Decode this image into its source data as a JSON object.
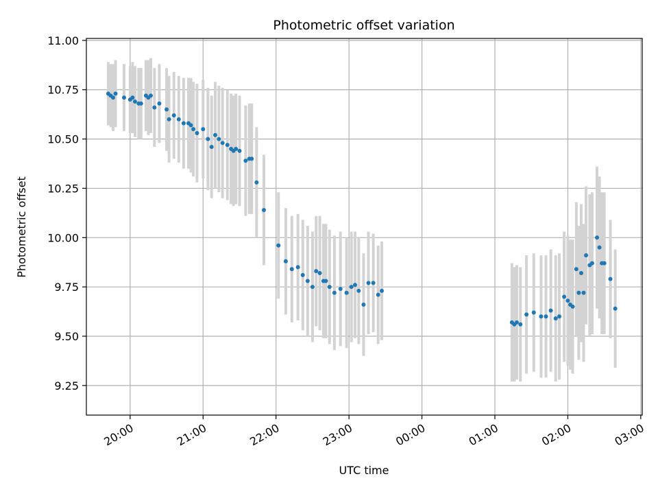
{
  "chart_data": {
    "type": "scatter",
    "title": "Photometric offset variation",
    "xlabel": "UTC time",
    "ylabel": "Photometric offset",
    "x_ticks": [
      "20:00",
      "21:00",
      "22:00",
      "23:00",
      "00:00",
      "01:00",
      "02:00",
      "03:00"
    ],
    "x_tick_hours": [
      20,
      21,
      22,
      23,
      24,
      25,
      26,
      27
    ],
    "y_ticks": [
      "9.25",
      "9.50",
      "9.75",
      "10.00",
      "10.25",
      "10.50",
      "10.75",
      "11.00"
    ],
    "y_tick_values": [
      9.25,
      9.5,
      9.75,
      10.0,
      10.25,
      10.5,
      10.75,
      11.0
    ],
    "xlim_hours": [
      19.4,
      27.02
    ],
    "ylim": [
      9.1,
      11.01
    ],
    "grid": true,
    "colors": {
      "points": "#1f77b4",
      "errorbars": "#d3d3d3",
      "grid": "#b0b0b0"
    },
    "series": [
      {
        "x_time": [
          "19:42",
          "19:44",
          "19:46",
          "19:48",
          "19:55",
          "20:00",
          "20:02",
          "20:04",
          "20:07",
          "20:09",
          "20:13",
          "20:15",
          "20:17",
          "20:20",
          "20:24",
          "20:30",
          "20:32",
          "20:36",
          "20:40",
          "20:44",
          "20:48",
          "20:50",
          "20:52",
          "20:55",
          "21:00",
          "21:04",
          "21:07",
          "21:10",
          "21:13",
          "21:16",
          "21:20",
          "21:23",
          "21:25",
          "21:27",
          "21:30",
          "21:35",
          "21:38",
          "21:40",
          "21:44",
          "21:50",
          "22:02",
          "22:08",
          "22:13",
          "22:18",
          "22:22",
          "22:26",
          "22:30",
          "22:33",
          "22:36",
          "22:39",
          "22:41",
          "22:44",
          "22:48",
          "22:53",
          "22:58",
          "23:02",
          "23:05",
          "23:08",
          "23:12",
          "23:16",
          "23:20",
          "23:24",
          "23:27",
          "01:14",
          "01:16",
          "01:18",
          "01:21",
          "01:26",
          "01:32",
          "01:38",
          "01:42",
          "01:46",
          "01:50",
          "01:53",
          "01:57",
          "02:00",
          "02:02",
          "02:04",
          "02:07",
          "02:09",
          "02:11",
          "02:13",
          "02:15",
          "02:18",
          "02:20",
          "02:24",
          "02:26",
          "02:28",
          "02:30",
          "02:35",
          "02:39"
        ],
        "y": [
          10.73,
          10.72,
          10.71,
          10.73,
          10.71,
          10.7,
          10.71,
          10.69,
          10.68,
          10.68,
          10.72,
          10.71,
          10.72,
          10.66,
          10.68,
          10.65,
          10.6,
          10.62,
          10.6,
          10.58,
          10.58,
          10.57,
          10.55,
          10.53,
          10.55,
          10.5,
          10.46,
          10.52,
          10.5,
          10.48,
          10.47,
          10.45,
          10.44,
          10.45,
          10.44,
          10.39,
          10.4,
          10.4,
          10.28,
          10.14,
          9.96,
          9.88,
          9.84,
          9.85,
          9.81,
          9.78,
          9.75,
          9.83,
          9.82,
          9.78,
          9.78,
          9.75,
          9.72,
          9.74,
          9.72,
          9.75,
          9.76,
          9.73,
          9.66,
          9.77,
          9.77,
          9.71,
          9.73,
          9.57,
          9.56,
          9.57,
          9.56,
          9.61,
          9.62,
          9.6,
          9.6,
          9.63,
          9.59,
          9.6,
          9.7,
          9.68,
          9.66,
          9.65,
          9.84,
          9.72,
          9.82,
          9.72,
          9.91,
          9.86,
          9.87,
          10.0,
          9.95,
          9.87,
          9.87,
          9.79,
          9.64
        ],
        "y_err": [
          0.16,
          0.16,
          0.17,
          0.17,
          0.17,
          0.17,
          0.18,
          0.18,
          0.18,
          0.18,
          0.18,
          0.19,
          0.19,
          0.2,
          0.2,
          0.21,
          0.22,
          0.22,
          0.22,
          0.23,
          0.23,
          0.24,
          0.24,
          0.25,
          0.25,
          0.26,
          0.26,
          0.27,
          0.27,
          0.28,
          0.28,
          0.28,
          0.28,
          0.28,
          0.28,
          0.28,
          0.28,
          0.28,
          0.28,
          0.28,
          0.27,
          0.27,
          0.27,
          0.27,
          0.28,
          0.28,
          0.28,
          0.28,
          0.29,
          0.29,
          0.29,
          0.29,
          0.29,
          0.29,
          0.28,
          0.28,
          0.27,
          0.27,
          0.26,
          0.26,
          0.25,
          0.25,
          0.25,
          0.3,
          0.29,
          0.29,
          0.29,
          0.3,
          0.3,
          0.31,
          0.31,
          0.31,
          0.32,
          0.32,
          0.33,
          0.33,
          0.33,
          0.34,
          0.34,
          0.34,
          0.35,
          0.35,
          0.35,
          0.36,
          0.36,
          0.36,
          0.36,
          0.36,
          0.36,
          0.3,
          0.3
        ]
      }
    ]
  }
}
